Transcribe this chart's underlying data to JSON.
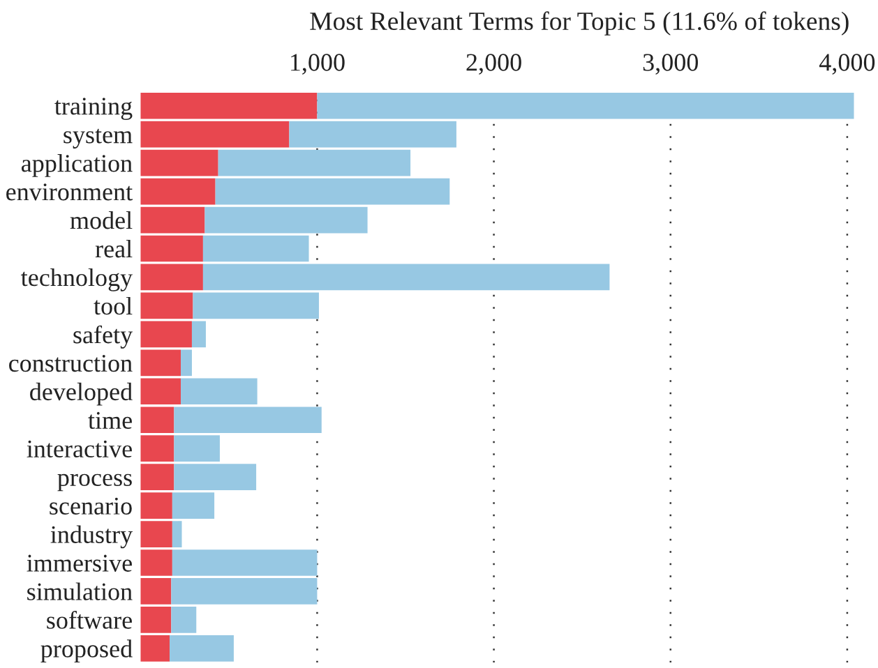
{
  "chart_data": {
    "type": "bar",
    "orientation": "horizontal",
    "title": "Most Relevant Terms for Topic 5 (11.6% of tokens)",
    "categories": [
      "training",
      "system",
      "application",
      "environment",
      "model",
      "real",
      "technology",
      "tool",
      "safety",
      "construction",
      "developed",
      "time",
      "interactive",
      "process",
      "scenario",
      "industry",
      "immersive",
      "simulation",
      "software",
      "proposed"
    ],
    "series": [
      {
        "color": "#e8474f",
        "values": [
          1000,
          842,
          440,
          424,
          364,
          354,
          354,
          297,
          291,
          228,
          228,
          190,
          190,
          190,
          180,
          180,
          180,
          174,
          174,
          165
        ]
      },
      {
        "color": "#97c8e3",
        "values": [
          3038,
          946,
          1088,
          1326,
          921,
          599,
          2301,
          713,
          79,
          63,
          433,
          835,
          259,
          465,
          238,
          54,
          820,
          826,
          142,
          363
        ]
      }
    ],
    "stacked": true,
    "xlim": [
      0,
      4050
    ],
    "xticks": [
      {
        "value": 1000,
        "label": "1,000"
      },
      {
        "value": 2000,
        "label": "2,000"
      },
      {
        "value": 3000,
        "label": "3,000"
      },
      {
        "value": 4000,
        "label": "4,000"
      }
    ],
    "grid": "x",
    "line_style": "dotted"
  }
}
